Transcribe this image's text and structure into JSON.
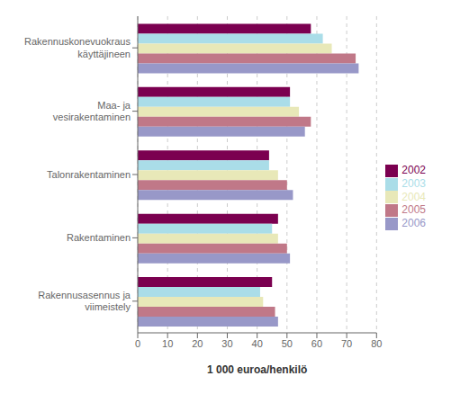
{
  "chart_data": {
    "type": "bar",
    "orientation": "horizontal",
    "categories": [
      "Rakennusasennus ja\nviimeistely",
      "Rakentaminen",
      "Talonrakentaminen",
      "Maa- ja\nvesirakentaminen",
      "Rakennuskonevuokraus\nkäyttäjineen"
    ],
    "series": [
      {
        "name": "2002",
        "color": "#7b0050",
        "values": [
          45,
          47,
          44,
          51,
          58
        ]
      },
      {
        "name": "2003",
        "color": "#aadde8",
        "values": [
          41,
          45,
          44,
          51,
          62
        ]
      },
      {
        "name": "2004",
        "color": "#e8e8b8",
        "values": [
          42,
          47,
          47,
          54,
          65
        ]
      },
      {
        "name": "2005",
        "color": "#c07888",
        "values": [
          46,
          50,
          50,
          58,
          73
        ]
      },
      {
        "name": "2006",
        "color": "#9898c8",
        "values": [
          47,
          51,
          52,
          56,
          74
        ]
      }
    ],
    "xlabel": "1 000 euroa/henkilö",
    "xlim": [
      0,
      80
    ],
    "xticks": [
      0,
      10,
      20,
      30,
      40,
      50,
      60,
      70,
      80
    ],
    "grid": true,
    "legend": "right"
  }
}
